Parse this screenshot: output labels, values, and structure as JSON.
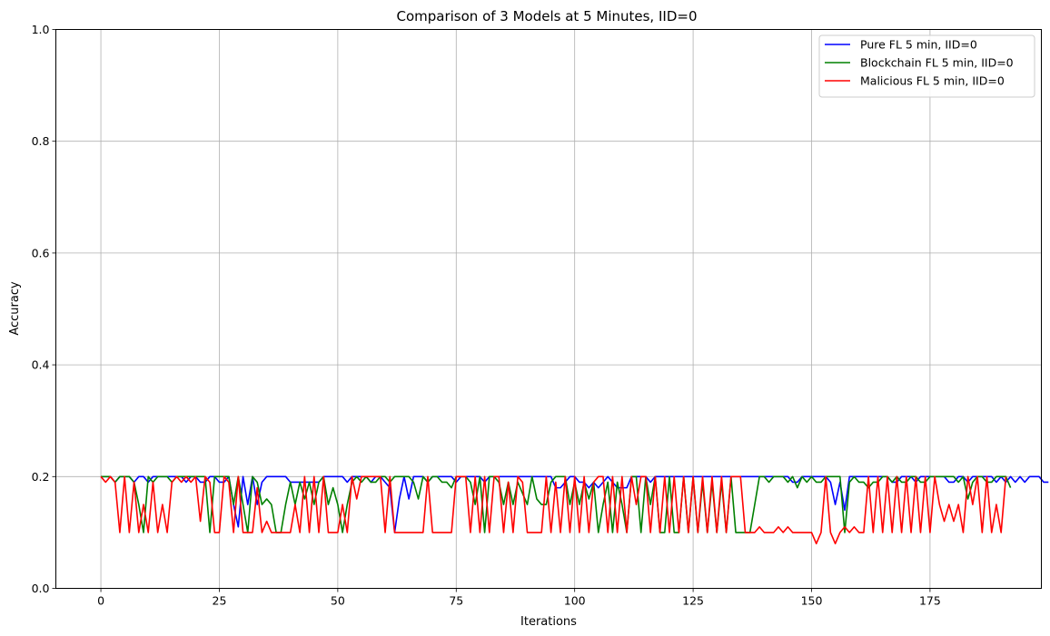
{
  "chart_data": {
    "type": "line",
    "title": "Comparison of 3 Models at 5 Minutes, IID=0",
    "xlabel": "Iterations",
    "ylabel": "Accuracy",
    "xlim": [
      -9.5,
      198.5
    ],
    "ylim": [
      0,
      1
    ],
    "xticks": [
      0,
      25,
      50,
      75,
      100,
      125,
      150,
      175
    ],
    "yticks": [
      0.0,
      0.2,
      0.4,
      0.6,
      0.8,
      1.0
    ],
    "xtick_labels": [
      "0",
      "25",
      "50",
      "75",
      "100",
      "125",
      "150",
      "175"
    ],
    "ytick_labels": [
      "0.0",
      "0.2",
      "0.4",
      "0.6",
      "0.8",
      "1.0"
    ],
    "grid": true,
    "legend_position": "top-right",
    "series": [
      {
        "name": "Pure FL 5 min, IID=0",
        "color": "#0000ff",
        "x_start": 0,
        "values": [
          0.2,
          0.2,
          0.2,
          0.19,
          0.2,
          0.2,
          0.2,
          0.19,
          0.2,
          0.2,
          0.19,
          0.2,
          0.2,
          0.2,
          0.2,
          0.2,
          0.2,
          0.2,
          0.19,
          0.2,
          0.2,
          0.19,
          0.19,
          0.2,
          0.2,
          0.19,
          0.19,
          0.2,
          0.15,
          0.11,
          0.2,
          0.15,
          0.2,
          0.15,
          0.19,
          0.2,
          0.2,
          0.2,
          0.2,
          0.2,
          0.19,
          0.19,
          0.19,
          0.19,
          0.19,
          0.19,
          0.19,
          0.2,
          0.2,
          0.2,
          0.2,
          0.2,
          0.19,
          0.2,
          0.2,
          0.2,
          0.2,
          0.19,
          0.2,
          0.2,
          0.19,
          0.18,
          0.1,
          0.16,
          0.2,
          0.16,
          0.2,
          0.2,
          0.2,
          0.19,
          0.2,
          0.2,
          0.2,
          0.2,
          0.2,
          0.19,
          0.2,
          0.2,
          0.2,
          0.2,
          0.2,
          0.19,
          0.2,
          0.2,
          0.2,
          0.2,
          0.2,
          0.2,
          0.2,
          0.2,
          0.2,
          0.2,
          0.2,
          0.2,
          0.2,
          0.2,
          0.18,
          0.18,
          0.19,
          0.2,
          0.2,
          0.19,
          0.19,
          0.18,
          0.19,
          0.18,
          0.19,
          0.2,
          0.19,
          0.18,
          0.18,
          0.18,
          0.2,
          0.2,
          0.2,
          0.2,
          0.19,
          0.2,
          0.2,
          0.2,
          0.2,
          0.2,
          0.2,
          0.2,
          0.2,
          0.2,
          0.2,
          0.2,
          0.2,
          0.2,
          0.2,
          0.2,
          0.2,
          0.2,
          0.2,
          0.2,
          0.2,
          0.2,
          0.2,
          0.2,
          0.2,
          0.2,
          0.2,
          0.2,
          0.2,
          0.2,
          0.19,
          0.19,
          0.2,
          0.2,
          0.2,
          0.2,
          0.2,
          0.2,
          0.19,
          0.15,
          0.19,
          0.14,
          0.2,
          0.2,
          0.2,
          0.2,
          0.2,
          0.2,
          0.2,
          0.2,
          0.2,
          0.19,
          0.19,
          0.2,
          0.2,
          0.2,
          0.19,
          0.2,
          0.2,
          0.2,
          0.2,
          0.2,
          0.2,
          0.19,
          0.19,
          0.2,
          0.2,
          0.19,
          0.2,
          0.2,
          0.2,
          0.2,
          0.2,
          0.19,
          0.2,
          0.19,
          0.2,
          0.19,
          0.2,
          0.19,
          0.2,
          0.2,
          0.2,
          0.19,
          0.19
        ]
      },
      {
        "name": "Blockchain FL 5 min, IID=0",
        "color": "#008000",
        "x_start": 0,
        "values": [
          0.2,
          0.2,
          0.2,
          0.19,
          0.2,
          0.2,
          0.2,
          0.19,
          0.15,
          0.1,
          0.2,
          0.19,
          0.2,
          0.2,
          0.2,
          0.19,
          0.2,
          0.2,
          0.2,
          0.2,
          0.2,
          0.2,
          0.2,
          0.1,
          0.2,
          0.2,
          0.2,
          0.2,
          0.15,
          0.2,
          0.15,
          0.1,
          0.2,
          0.19,
          0.15,
          0.16,
          0.15,
          0.1,
          0.1,
          0.15,
          0.19,
          0.15,
          0.19,
          0.16,
          0.19,
          0.15,
          0.19,
          0.2,
          0.15,
          0.18,
          0.15,
          0.1,
          0.15,
          0.19,
          0.2,
          0.19,
          0.2,
          0.19,
          0.19,
          0.2,
          0.2,
          0.19,
          0.2,
          0.2,
          0.2,
          0.2,
          0.19,
          0.16,
          0.2,
          0.19,
          0.2,
          0.2,
          0.19,
          0.19,
          0.18,
          0.2,
          0.2,
          0.2,
          0.19,
          0.15,
          0.2,
          0.1,
          0.2,
          0.2,
          0.19,
          0.15,
          0.19,
          0.15,
          0.19,
          0.17,
          0.15,
          0.2,
          0.16,
          0.15,
          0.15,
          0.19,
          0.2,
          0.2,
          0.2,
          0.15,
          0.19,
          0.15,
          0.19,
          0.16,
          0.19,
          0.1,
          0.15,
          0.19,
          0.1,
          0.19,
          0.15,
          0.1,
          0.2,
          0.2,
          0.1,
          0.2,
          0.15,
          0.2,
          0.1,
          0.1,
          0.2,
          0.1,
          0.1,
          0.2,
          0.1,
          0.2,
          0.1,
          0.19,
          0.1,
          0.19,
          0.1,
          0.19,
          0.1,
          0.2,
          0.1,
          0.1,
          0.1,
          0.1,
          0.15,
          0.2,
          0.2,
          0.19,
          0.2,
          0.2,
          0.2,
          0.19,
          0.2,
          0.18,
          0.2,
          0.19,
          0.2,
          0.19,
          0.19,
          0.2,
          0.2,
          0.2,
          0.2,
          0.1,
          0.19,
          0.2,
          0.19,
          0.19,
          0.18,
          0.19,
          0.19,
          0.2,
          0.2,
          0.19,
          0.2,
          0.19,
          0.19,
          0.2,
          0.2,
          0.19,
          0.19,
          0.2,
          0.2,
          0.2,
          0.2,
          0.2,
          0.2,
          0.19,
          0.2,
          0.16,
          0.19,
          0.2,
          0.2,
          0.19,
          0.19,
          0.2,
          0.2,
          0.2,
          0.18
        ]
      },
      {
        "name": "Malicious FL 5 min, IID=0",
        "color": "#ff0000",
        "x_start": 0,
        "values": [
          0.2,
          0.19,
          0.2,
          0.19,
          0.1,
          0.2,
          0.1,
          0.19,
          0.1,
          0.15,
          0.1,
          0.19,
          0.1,
          0.15,
          0.1,
          0.19,
          0.2,
          0.19,
          0.2,
          0.19,
          0.2,
          0.12,
          0.2,
          0.19,
          0.1,
          0.1,
          0.2,
          0.19,
          0.1,
          0.2,
          0.1,
          0.1,
          0.1,
          0.18,
          0.1,
          0.12,
          0.1,
          0.1,
          0.1,
          0.1,
          0.1,
          0.15,
          0.1,
          0.2,
          0.1,
          0.2,
          0.1,
          0.2,
          0.1,
          0.1,
          0.1,
          0.15,
          0.1,
          0.2,
          0.16,
          0.2,
          0.2,
          0.2,
          0.2,
          0.2,
          0.1,
          0.2,
          0.1,
          0.1,
          0.1,
          0.1,
          0.1,
          0.1,
          0.1,
          0.2,
          0.1,
          0.1,
          0.1,
          0.1,
          0.1,
          0.2,
          0.2,
          0.2,
          0.1,
          0.2,
          0.1,
          0.2,
          0.1,
          0.2,
          0.2,
          0.1,
          0.19,
          0.1,
          0.2,
          0.19,
          0.1,
          0.1,
          0.1,
          0.1,
          0.2,
          0.1,
          0.19,
          0.1,
          0.2,
          0.1,
          0.2,
          0.1,
          0.2,
          0.1,
          0.19,
          0.2,
          0.2,
          0.1,
          0.2,
          0.1,
          0.2,
          0.1,
          0.2,
          0.15,
          0.2,
          0.2,
          0.1,
          0.2,
          0.1,
          0.2,
          0.1,
          0.2,
          0.1,
          0.2,
          0.1,
          0.2,
          0.1,
          0.2,
          0.1,
          0.2,
          0.1,
          0.2,
          0.1,
          0.2,
          0.2,
          0.2,
          0.1,
          0.1,
          0.1,
          0.11,
          0.1,
          0.1,
          0.1,
          0.11,
          0.1,
          0.11,
          0.1,
          0.1,
          0.1,
          0.1,
          0.1,
          0.08,
          0.1,
          0.2,
          0.1,
          0.08,
          0.1,
          0.11,
          0.1,
          0.11,
          0.1,
          0.1,
          0.2,
          0.1,
          0.2,
          0.1,
          0.2,
          0.1,
          0.2,
          0.1,
          0.2,
          0.1,
          0.2,
          0.1,
          0.2,
          0.1,
          0.2,
          0.15,
          0.12,
          0.15,
          0.12,
          0.15,
          0.1,
          0.2,
          0.15,
          0.2,
          0.1,
          0.2,
          0.1,
          0.15,
          0.1,
          0.2
        ]
      }
    ]
  }
}
